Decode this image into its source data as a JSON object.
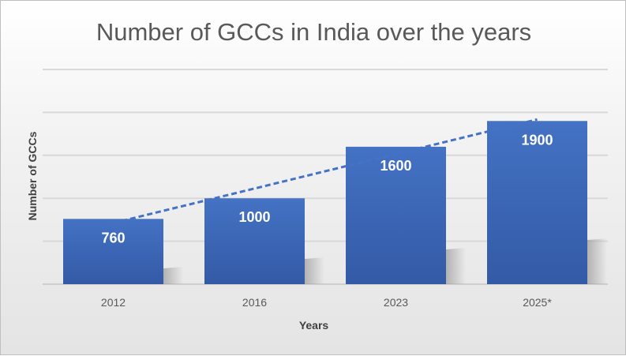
{
  "chart_data": {
    "type": "bar",
    "title": "Number of GCCs in India over the years",
    "xlabel": "Years",
    "ylabel": "Number of GCCs",
    "categories": [
      "2012",
      "2016",
      "2023",
      "2025*"
    ],
    "values": [
      760,
      1000,
      1600,
      1900
    ],
    "data_labels": [
      "760",
      "1000",
      "1600",
      "1900"
    ],
    "ylim": [
      0,
      2500
    ],
    "y_gridlines": [
      0,
      500,
      1000,
      1500,
      2000,
      2500
    ],
    "grid": true,
    "y_tick_labels_shown": false,
    "trendline": {
      "type": "linear",
      "style": "dashed"
    },
    "bar_color": "#4472C4",
    "trendline_color": "#4472C4"
  }
}
